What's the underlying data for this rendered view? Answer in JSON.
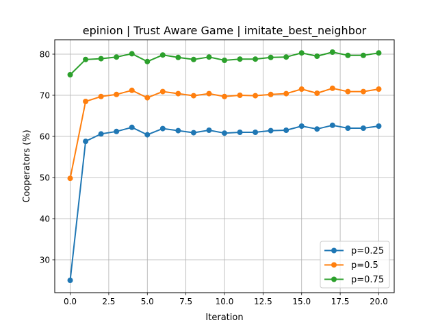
{
  "chart_data": {
    "type": "line",
    "title": "epinion | Trust Aware Game | imitate_best_neighbor",
    "xlabel": "Iteration",
    "ylabel": "Cooperators (%)",
    "xlim": [
      -1.0,
      21.0
    ],
    "ylim": [
      22.0,
      83.5
    ],
    "xticks": [
      0.0,
      2.5,
      5.0,
      7.5,
      10.0,
      12.5,
      15.0,
      17.5,
      20.0
    ],
    "xtick_labels": [
      "0.0",
      "2.5",
      "5.0",
      "7.5",
      "10.0",
      "12.5",
      "15.0",
      "17.5",
      "20.0"
    ],
    "yticks": [
      30,
      40,
      50,
      60,
      70,
      80
    ],
    "ytick_labels": [
      "30",
      "40",
      "50",
      "60",
      "70",
      "80"
    ],
    "grid": true,
    "legend_position": "bottom-right",
    "x": [
      0,
      1,
      2,
      3,
      4,
      5,
      6,
      7,
      8,
      9,
      10,
      11,
      12,
      13,
      14,
      15,
      16,
      17,
      18,
      19,
      20
    ],
    "series": [
      {
        "name": "p=0.25",
        "color": "#1f77b4",
        "values": [
          25.0,
          58.8,
          60.6,
          61.2,
          62.2,
          60.4,
          61.9,
          61.4,
          60.9,
          61.5,
          60.8,
          61.0,
          61.0,
          61.4,
          61.5,
          62.5,
          61.8,
          62.7,
          62.0,
          62.0,
          62.5
        ]
      },
      {
        "name": "p=0.5",
        "color": "#ff7f0e",
        "values": [
          49.8,
          68.5,
          69.7,
          70.2,
          71.2,
          69.4,
          70.9,
          70.4,
          69.9,
          70.4,
          69.7,
          70.0,
          69.9,
          70.2,
          70.4,
          71.5,
          70.5,
          71.7,
          70.9,
          70.9,
          71.5
        ]
      },
      {
        "name": "p=0.75",
        "color": "#2ca02c",
        "values": [
          75.0,
          78.7,
          78.9,
          79.3,
          80.1,
          78.2,
          79.8,
          79.2,
          78.7,
          79.3,
          78.5,
          78.8,
          78.8,
          79.2,
          79.3,
          80.3,
          79.5,
          80.5,
          79.7,
          79.7,
          80.3
        ]
      }
    ]
  }
}
